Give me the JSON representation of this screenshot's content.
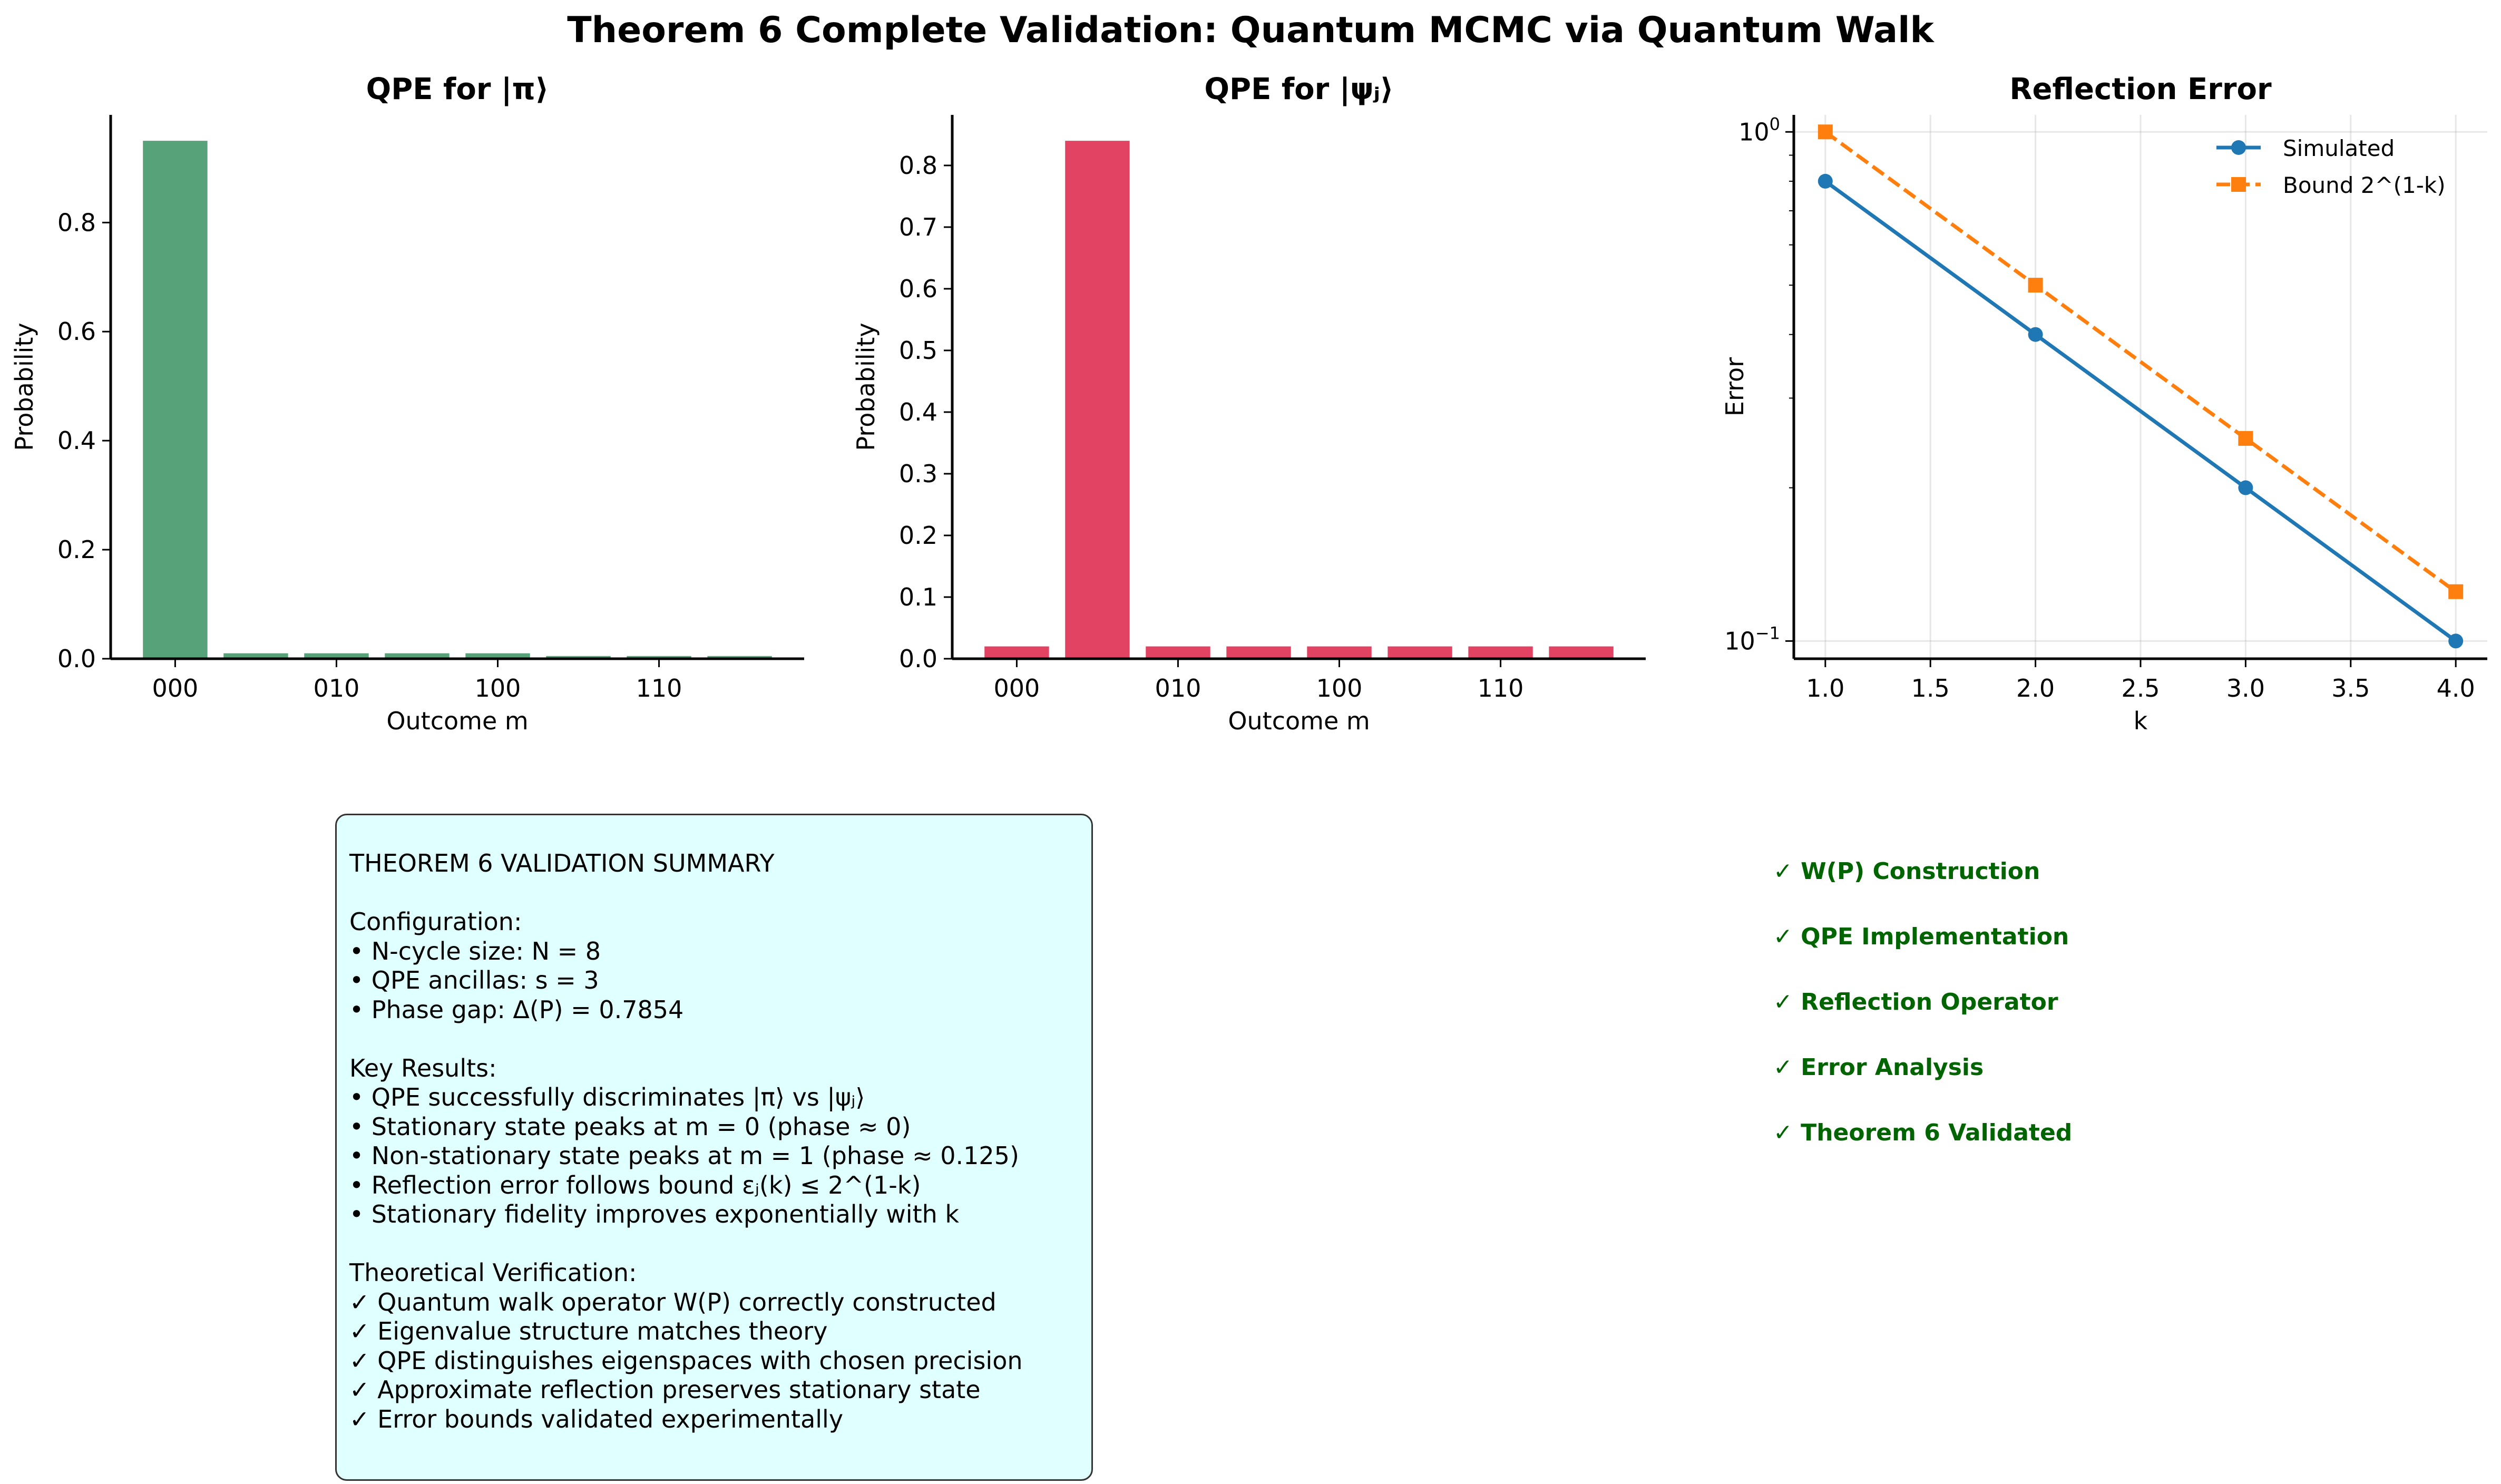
{
  "figure_title": "Theorem 6 Complete Validation: Quantum MCMC via Quantum Walk",
  "chart_data": [
    {
      "type": "bar",
      "title": "QPE for |π⟩",
      "xlabel": "Outcome m",
      "ylabel": "Probability",
      "categories": [
        "000",
        "001",
        "010",
        "011",
        "100",
        "101",
        "110",
        "111"
      ],
      "xtick_labels": [
        "000",
        "010",
        "100",
        "110"
      ],
      "values": [
        0.95,
        0.01,
        0.01,
        0.01,
        0.01,
        0.005,
        0.005,
        0.005
      ],
      "yticks": [
        "0.0",
        "0.2",
        "0.4",
        "0.6",
        "0.8"
      ],
      "ylim": [
        0,
        0.9975
      ],
      "color": "#2e8b57",
      "grid": false
    },
    {
      "type": "bar",
      "title": "QPE for |ψⱼ⟩",
      "xlabel": "Outcome m",
      "ylabel": "Probability",
      "categories": [
        "000",
        "001",
        "010",
        "011",
        "100",
        "101",
        "110",
        "111"
      ],
      "xtick_labels": [
        "000",
        "010",
        "100",
        "110"
      ],
      "values": [
        0.02,
        0.84,
        0.02,
        0.02,
        0.02,
        0.02,
        0.02,
        0.02
      ],
      "yticks": [
        "0.0",
        "0.1",
        "0.2",
        "0.3",
        "0.4",
        "0.5",
        "0.6",
        "0.7",
        "0.8"
      ],
      "ylim": [
        0,
        0.882
      ],
      "color": "#dc143c",
      "grid": false
    },
    {
      "type": "line",
      "title": "Reflection Error",
      "xlabel": "k",
      "ylabel": "Error",
      "yscale": "log",
      "xlim": [
        0.85,
        4.15
      ],
      "ylim": [
        0.0923,
        1.08
      ],
      "xticks": [
        "1.0",
        "1.5",
        "2.0",
        "2.5",
        "3.0",
        "3.5",
        "4.0"
      ],
      "yticks": [
        {
          "base": "10",
          "exp": "0"
        },
        {
          "base": "10",
          "exp": "−1"
        }
      ],
      "legend": "top-right",
      "grid": true,
      "x": [
        1,
        2,
        3,
        4
      ],
      "series": [
        {
          "name": "Simulated",
          "values": [
            0.8,
            0.4,
            0.2,
            0.1
          ],
          "color": "#1f77b4",
          "marker": "circle",
          "style": "solid"
        },
        {
          "name": "Bound 2^(1-k)",
          "values": [
            1.0,
            0.5,
            0.25,
            0.125
          ],
          "color": "#ff7f0e",
          "marker": "square",
          "style": "dashed"
        }
      ]
    }
  ],
  "summary": {
    "lines": [
      "THEOREM 6 VALIDATION SUMMARY",
      "",
      "Configuration:",
      "• N-cycle size: N = 8",
      "• QPE ancillas: s = 3",
      "• Phase gap: Δ(P) = 0.7854",
      "",
      "Key Results:",
      "• QPE successfully discriminates |π⟩ vs |ψⱼ⟩",
      "• Stationary state peaks at m = 0 (phase ≈ 0)",
      "• Non-stationary state peaks at m = 1 (phase ≈ 0.125)",
      "• Reflection error follows bound εⱼ(k) ≤ 2^(1-k)",
      "• Stationary fidelity improves exponentially with k",
      "",
      "Theoretical Verification:",
      "✓ Quantum walk operator W(P) correctly constructed",
      "✓ Eigenvalue structure matches theory",
      "✓ QPE distinguishes eigenspaces with chosen precision",
      "✓ Approximate reflection preserves stationary state",
      "✓ Error bounds validated experimentally"
    ]
  },
  "checks": [
    "✓ W(P) Construction",
    "✓ QPE Implementation",
    "✓ Reflection Operator",
    "✓ Error Analysis",
    "✓ Theorem 6 Validated"
  ],
  "colors": {
    "check_text": "#006400",
    "summary_bg": "#e0ffff"
  }
}
